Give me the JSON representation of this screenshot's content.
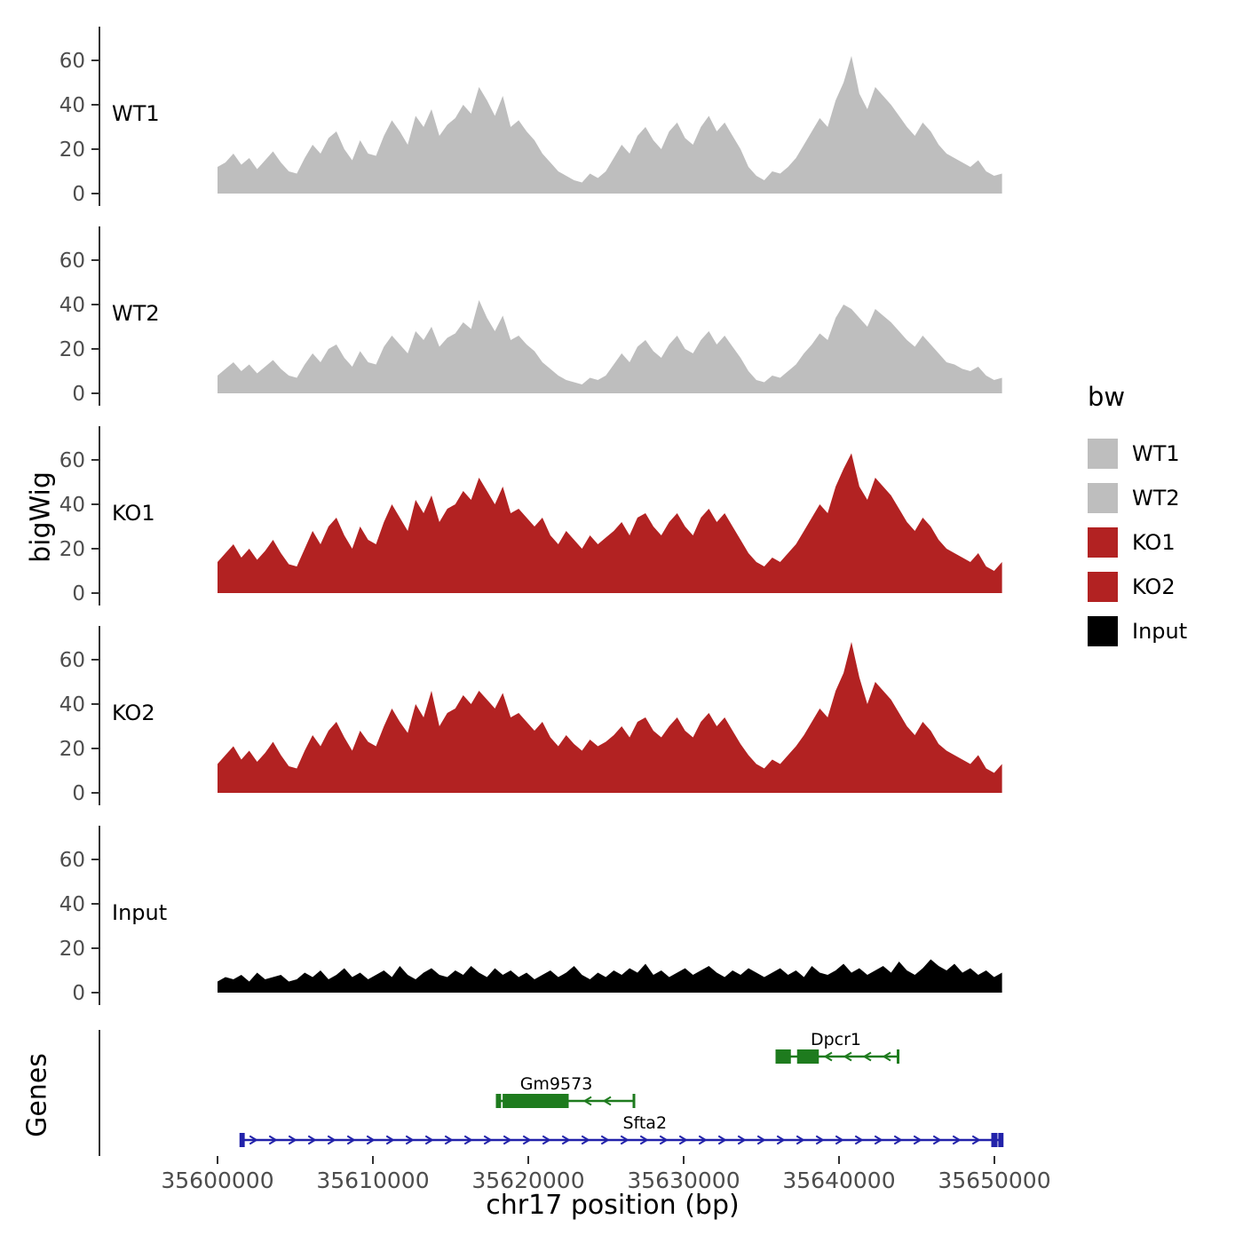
{
  "ylab_tracks": "bigWig",
  "ylab_genes": "Genes",
  "x_axis": {
    "label": "chr17 position (bp)",
    "ticks": [
      35600000,
      35610000,
      35620000,
      35630000,
      35640000,
      35650000
    ]
  },
  "y_axis": {
    "ticks": [
      0,
      20,
      40,
      60
    ]
  },
  "legend": {
    "title": "bw",
    "items": [
      {
        "label": "WT1",
        "color": "#BEBEBE"
      },
      {
        "label": "WT2",
        "color": "#BEBEBE"
      },
      {
        "label": "KO1",
        "color": "#B22222"
      },
      {
        "label": "KO2",
        "color": "#B22222"
      },
      {
        "label": "Input",
        "color": "#000000"
      }
    ]
  },
  "chart_data": {
    "type": "area",
    "title": "",
    "xlabel": "chr17 position (bp)",
    "ylabel": "bigWig",
    "x": {
      "chrom": "chr17",
      "start": 35600000,
      "step": 510,
      "n": 100
    },
    "ylim": [
      0,
      70
    ],
    "grid": false,
    "legend_position": "right",
    "tracks": [
      {
        "name": "WT1",
        "color": "#BEBEBE",
        "values": [
          12,
          14,
          18,
          13,
          16,
          11,
          15,
          19,
          14,
          10,
          9,
          16,
          22,
          18,
          25,
          28,
          20,
          15,
          24,
          18,
          17,
          26,
          33,
          28,
          22,
          35,
          30,
          38,
          26,
          31,
          34,
          40,
          36,
          48,
          42,
          35,
          44,
          30,
          33,
          28,
          24,
          18,
          14,
          10,
          8,
          6,
          5,
          9,
          7,
          10,
          16,
          22,
          18,
          26,
          30,
          24,
          20,
          28,
          32,
          25,
          22,
          30,
          35,
          28,
          32,
          26,
          20,
          12,
          8,
          6,
          10,
          9,
          12,
          16,
          22,
          28,
          34,
          30,
          42,
          50,
          62,
          45,
          38,
          48,
          44,
          40,
          35,
          30,
          26,
          32,
          28,
          22,
          18,
          16,
          14,
          12,
          15,
          10,
          8,
          9
        ]
      },
      {
        "name": "WT2",
        "color": "#BEBEBE",
        "values": [
          8,
          11,
          14,
          10,
          13,
          9,
          12,
          15,
          11,
          8,
          7,
          13,
          18,
          14,
          20,
          22,
          16,
          12,
          19,
          14,
          13,
          21,
          26,
          22,
          18,
          28,
          24,
          30,
          21,
          25,
          27,
          32,
          29,
          42,
          34,
          28,
          35,
          24,
          26,
          22,
          19,
          14,
          11,
          8,
          6,
          5,
          4,
          7,
          6,
          8,
          13,
          18,
          14,
          21,
          24,
          19,
          16,
          22,
          26,
          20,
          18,
          24,
          28,
          22,
          26,
          21,
          16,
          10,
          6,
          5,
          8,
          7,
          10,
          13,
          18,
          22,
          27,
          24,
          34,
          40,
          38,
          34,
          30,
          38,
          35,
          32,
          28,
          24,
          21,
          26,
          22,
          18,
          14,
          13,
          11,
          10,
          12,
          8,
          6,
          7
        ]
      },
      {
        "name": "KO1",
        "color": "#B22222",
        "values": [
          14,
          18,
          22,
          16,
          20,
          15,
          19,
          24,
          18,
          13,
          12,
          20,
          28,
          22,
          30,
          34,
          26,
          20,
          30,
          24,
          22,
          32,
          40,
          34,
          28,
          42,
          36,
          44,
          32,
          38,
          40,
          46,
          42,
          52,
          46,
          40,
          48,
          36,
          38,
          34,
          30,
          34,
          26,
          22,
          28,
          24,
          20,
          26,
          22,
          25,
          28,
          32,
          26,
          34,
          36,
          30,
          26,
          32,
          36,
          30,
          26,
          34,
          38,
          32,
          36,
          30,
          24,
          18,
          14,
          12,
          16,
          14,
          18,
          22,
          28,
          34,
          40,
          36,
          48,
          56,
          63,
          48,
          42,
          52,
          48,
          44,
          38,
          32,
          28,
          34,
          30,
          24,
          20,
          18,
          16,
          14,
          18,
          12,
          10,
          14
        ]
      },
      {
        "name": "KO2",
        "color": "#B22222",
        "values": [
          13,
          17,
          21,
          15,
          19,
          14,
          18,
          23,
          17,
          12,
          11,
          19,
          26,
          21,
          28,
          32,
          25,
          19,
          28,
          23,
          21,
          30,
          38,
          32,
          27,
          40,
          34,
          46,
          30,
          36,
          38,
          44,
          40,
          46,
          42,
          38,
          45,
          34,
          36,
          32,
          28,
          32,
          25,
          21,
          26,
          22,
          19,
          24,
          21,
          23,
          26,
          30,
          25,
          32,
          34,
          28,
          25,
          30,
          34,
          28,
          25,
          32,
          36,
          30,
          34,
          28,
          22,
          17,
          13,
          11,
          15,
          13,
          17,
          21,
          26,
          32,
          38,
          34,
          46,
          54,
          68,
          52,
          40,
          50,
          46,
          42,
          36,
          30,
          26,
          32,
          28,
          22,
          19,
          17,
          15,
          13,
          17,
          11,
          9,
          13
        ]
      },
      {
        "name": "Input",
        "color": "#000000",
        "values": [
          5,
          7,
          6,
          8,
          5,
          9,
          6,
          7,
          8,
          5,
          6,
          9,
          7,
          10,
          6,
          8,
          11,
          7,
          9,
          6,
          8,
          10,
          7,
          12,
          8,
          6,
          9,
          11,
          8,
          7,
          10,
          8,
          12,
          9,
          7,
          11,
          8,
          10,
          7,
          9,
          6,
          8,
          10,
          7,
          9,
          12,
          8,
          6,
          9,
          7,
          10,
          8,
          11,
          9,
          13,
          8,
          10,
          7,
          9,
          11,
          8,
          10,
          12,
          9,
          7,
          10,
          8,
          11,
          9,
          7,
          9,
          11,
          8,
          10,
          7,
          12,
          9,
          8,
          10,
          13,
          9,
          11,
          8,
          10,
          12,
          9,
          14,
          10,
          8,
          11,
          15,
          12,
          10,
          13,
          9,
          11,
          8,
          10,
          7,
          9
        ]
      }
    ],
    "genes": [
      {
        "name": "Sfta2",
        "color": "#2222AA",
        "strand": "+",
        "start": 35601500,
        "end": 35650500,
        "exons": [
          [
            35601500,
            35601750
          ],
          [
            35649800,
            35650200
          ],
          [
            35650250,
            35650500
          ]
        ],
        "label_pos": 35627500
      },
      {
        "name": "Gm9573",
        "color": "#1E7B1E",
        "strand": "-",
        "start": 35618000,
        "end": 35626800,
        "exons": [
          [
            35618000,
            35618250
          ],
          [
            35618350,
            35622600
          ]
        ],
        "label_pos": 35621800
      },
      {
        "name": "Dpcr1",
        "color": "#1E7B1E",
        "strand": "-",
        "start": 35636000,
        "end": 35643800,
        "exons": [
          [
            35636000,
            35636900
          ],
          [
            35637300,
            35638700
          ]
        ],
        "label_pos": 35639800
      }
    ]
  }
}
